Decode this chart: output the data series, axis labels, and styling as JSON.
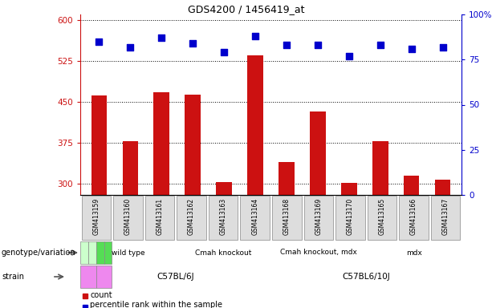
{
  "title": "GDS4200 / 1456419_at",
  "samples": [
    "GSM413159",
    "GSM413160",
    "GSM413161",
    "GSM413162",
    "GSM413163",
    "GSM413164",
    "GSM413168",
    "GSM413169",
    "GSM413170",
    "GSM413165",
    "GSM413166",
    "GSM413167"
  ],
  "counts": [
    462,
    378,
    468,
    463,
    303,
    535,
    340,
    432,
    302,
    378,
    315,
    308
  ],
  "percentiles": [
    85,
    82,
    87,
    84,
    79,
    88,
    83,
    83,
    77,
    83,
    81,
    82
  ],
  "ylim_left": [
    280,
    610
  ],
  "ylim_right": [
    0,
    100
  ],
  "yticks_left": [
    300,
    375,
    450,
    525,
    600
  ],
  "yticks_right": [
    0,
    25,
    50,
    75,
    100
  ],
  "bar_color": "#cc1111",
  "dot_color": "#0000cc",
  "bar_width": 0.5,
  "dot_size": 30,
  "geno_groups": [
    {
      "label": "wild type",
      "start": 0,
      "end": 3,
      "color": "#ccffcc"
    },
    {
      "label": "Cmah knockout",
      "start": 3,
      "end": 6,
      "color": "#ccffcc"
    },
    {
      "label": "Cmah knockout, mdx",
      "start": 6,
      "end": 9,
      "color": "#55dd55"
    },
    {
      "label": "mdx",
      "start": 9,
      "end": 12,
      "color": "#55dd55"
    }
  ],
  "strain_groups": [
    {
      "label": "C57BL/6J",
      "start": 0,
      "end": 6,
      "color": "#ee88ee"
    },
    {
      "label": "C57BL6/10J",
      "start": 6,
      "end": 12,
      "color": "#ee88ee"
    }
  ],
  "legend_count_color": "#cc1111",
  "legend_dot_color": "#0000cc"
}
